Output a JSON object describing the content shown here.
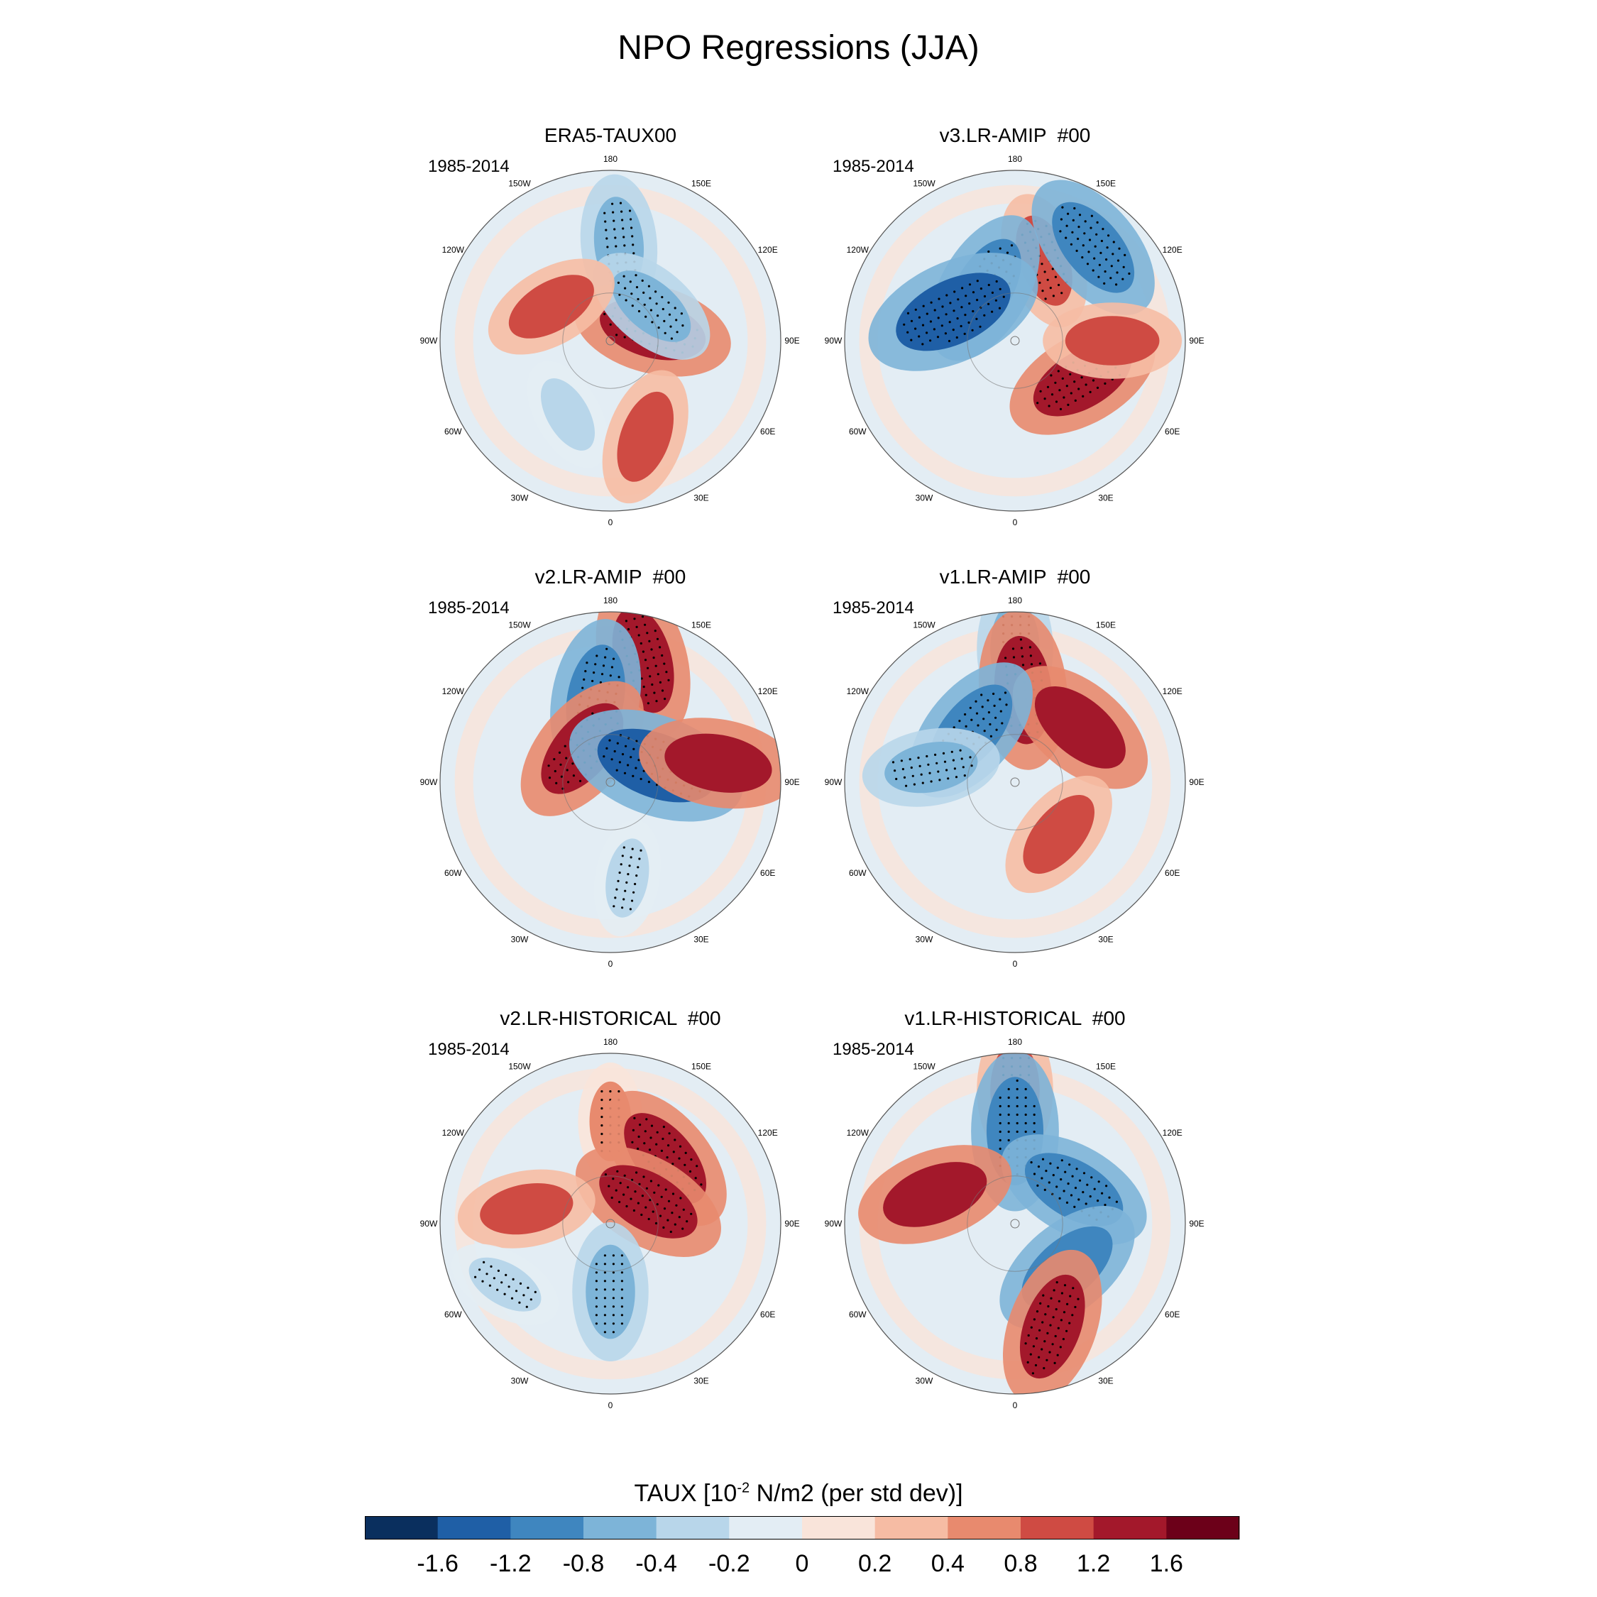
{
  "title": "NPO Regressions (JJA)",
  "panels": [
    {
      "title": "ERA5-TAUX00",
      "period": "1985-2014"
    },
    {
      "title": "v3.LR-AMIP  #00",
      "period": "1985-2014"
    },
    {
      "title": "v2.LR-AMIP  #00",
      "period": "1985-2014"
    },
    {
      "title": "v1.LR-AMIP  #00",
      "period": "1985-2014"
    },
    {
      "title": "v2.LR-HISTORICAL  #00",
      "period": "1985-2014"
    },
    {
      "title": "v1.LR-HISTORICAL  #00",
      "period": "1985-2014"
    }
  ],
  "lon_labels": {
    "l180": "180",
    "l150e": "150E",
    "l120e": "120E",
    "l90e": "90E",
    "l60e": "60E",
    "l30e": "30E",
    "l0": "0",
    "l30w": "30W",
    "l60w": "60W",
    "l90w": "90W",
    "l120w": "120W",
    "l150w": "150W"
  },
  "colorbar": {
    "title_prefix": "TAUX [10",
    "title_exp": "-2",
    "title_suffix": " N/m2 (per std dev)]",
    "tick_labels": [
      "-1.6",
      "-1.2",
      "-0.8",
      "-0.4",
      "-0.2",
      "0",
      "0.2",
      "0.4",
      "0.8",
      "1.2",
      "1.6"
    ],
    "colors": [
      "#0a2f5e",
      "#1f5fa6",
      "#3f86bf",
      "#7db4d8",
      "#b8d6ea",
      "#e3edf4",
      "#f9e4da",
      "#f6bca4",
      "#e88a6e",
      "#cf4b43",
      "#a3182b",
      "#6c0019"
    ]
  },
  "chart_data": {
    "type": "heatmap",
    "title": "NPO Regressions (JJA)",
    "projection": "north polar stereographic",
    "variable": "TAUX [10^-2 N/m2 (per std dev)]",
    "contour_levels": [
      -1.6,
      -1.2,
      -0.8,
      -0.4,
      -0.2,
      0,
      0.2,
      0.4,
      0.8,
      1.2,
      1.6
    ],
    "panels": [
      {
        "name": "ERA5-TAUX00",
        "period": "1985-2014",
        "features": [
          {
            "lon": 175,
            "lat": 50,
            "value": -0.8,
            "significant": true
          },
          {
            "lon": 105,
            "lat": 72,
            "value": 1.2,
            "significant": true
          },
          {
            "lon": 130,
            "lat": 68,
            "value": -0.8,
            "significant": true
          },
          {
            "lon": -120,
            "lat": 62,
            "value": 0.8,
            "significant": false
          },
          {
            "lon": -30,
            "lat": 55,
            "value": -0.4,
            "significant": false
          },
          {
            "lon": 20,
            "lat": 48,
            "value": 0.8,
            "significant": false
          }
        ]
      },
      {
        "name": "v3.LR-AMIP  #00",
        "period": "1985-2014",
        "features": [
          {
            "lon": 160,
            "lat": 55,
            "value": 0.8,
            "significant": true
          },
          {
            "lon": 140,
            "lat": 40,
            "value": -1.2,
            "significant": true
          },
          {
            "lon": -150,
            "lat": 65,
            "value": -1.2,
            "significant": true
          },
          {
            "lon": -115,
            "lat": 62,
            "value": -1.6,
            "significant": true
          },
          {
            "lon": 60,
            "lat": 58,
            "value": 1.2,
            "significant": true
          },
          {
            "lon": 90,
            "lat": 50,
            "value": 0.8,
            "significant": false
          }
        ]
      },
      {
        "name": "v2.LR-AMIP  #00",
        "period": "1985-2014",
        "features": [
          {
            "lon": 165,
            "lat": 38,
            "value": 1.2,
            "significant": true
          },
          {
            "lon": -170,
            "lat": 55,
            "value": -1.2,
            "significant": true
          },
          {
            "lon": -140,
            "lat": 72,
            "value": 1.2,
            "significant": true
          },
          {
            "lon": 110,
            "lat": 70,
            "value": -1.6,
            "significant": true
          },
          {
            "lon": 100,
            "lat": 45,
            "value": 1.2,
            "significant": false
          },
          {
            "lon": 10,
            "lat": 50,
            "value": -0.4,
            "significant": true
          }
        ]
      },
      {
        "name": "v1.LR-AMIP  #00",
        "period": "1985-2014",
        "features": [
          {
            "lon": 180,
            "lat": 35,
            "value": -0.8,
            "significant": true
          },
          {
            "lon": 175,
            "lat": 52,
            "value": 1.2,
            "significant": true
          },
          {
            "lon": 130,
            "lat": 55,
            "value": 1.2,
            "significant": false
          },
          {
            "lon": -140,
            "lat": 62,
            "value": -1.2,
            "significant": true
          },
          {
            "lon": -100,
            "lat": 55,
            "value": -0.8,
            "significant": true
          },
          {
            "lon": 40,
            "lat": 62,
            "value": 0.8,
            "significant": false
          }
        ]
      },
      {
        "name": "v2.LR-HISTORICAL  #00",
        "period": "1985-2014",
        "features": [
          {
            "lon": 180,
            "lat": 48,
            "value": 0.4,
            "significant": true
          },
          {
            "lon": 140,
            "lat": 55,
            "value": 1.2,
            "significant": true
          },
          {
            "lon": 120,
            "lat": 72,
            "value": 1.2,
            "significant": true
          },
          {
            "lon": -100,
            "lat": 55,
            "value": 0.8,
            "significant": false
          },
          {
            "lon": -60,
            "lat": 40,
            "value": -0.4,
            "significant": true
          },
          {
            "lon": 0,
            "lat": 62,
            "value": -0.8,
            "significant": true
          }
        ]
      },
      {
        "name": "v1.LR-HISTORICAL  #00",
        "period": "1985-2014",
        "features": [
          {
            "lon": 180,
            "lat": 35,
            "value": 0.8,
            "significant": true
          },
          {
            "lon": 180,
            "lat": 52,
            "value": -1.2,
            "significant": true
          },
          {
            "lon": 120,
            "lat": 62,
            "value": -1.2,
            "significant": true
          },
          {
            "lon": -110,
            "lat": 55,
            "value": 1.2,
            "significant": false
          },
          {
            "lon": 50,
            "lat": 62,
            "value": -1.2,
            "significant": false
          },
          {
            "lon": 20,
            "lat": 45,
            "value": 1.2,
            "significant": true
          }
        ]
      }
    ]
  }
}
